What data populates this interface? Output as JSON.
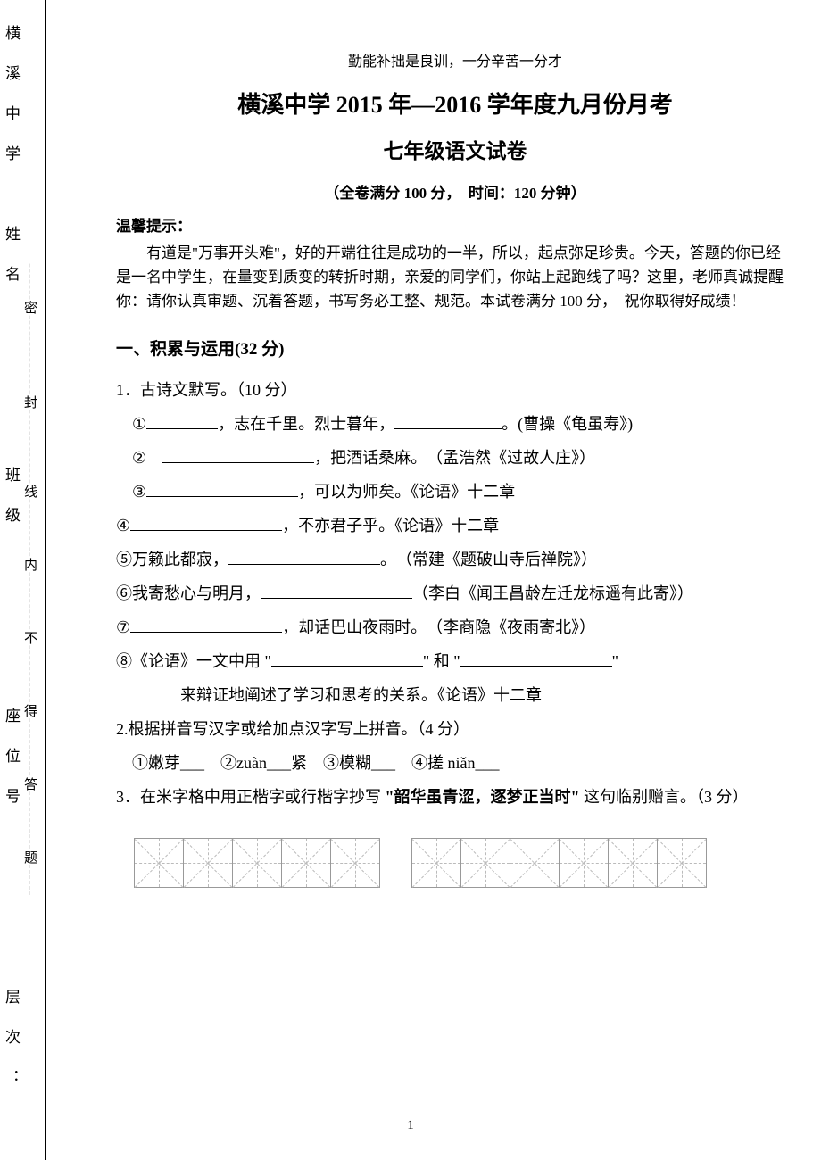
{
  "side": {
    "label1": "横溪中学　姓名　　　　班级　　　　座位号　　　　层次：　　",
    "seal": "-------密---------------封--------------线-----------内-----------不-----------得-----------答-----------题------"
  },
  "header": {
    "motto": "勤能补拙是良训，一分辛苦一分才",
    "title": "横溪中学 2015 年—2016 学年度九月份月考",
    "subtitle": "七年级语文试卷",
    "info": "（全卷满分 100 分，　时间：120 分钟）"
  },
  "tip": {
    "label": "温馨提示：",
    "para": "有道是\"万事开头难\"，好的开端往往是成功的一半，所以，起点弥足珍贵。今天，答题的你已经是一名中学生，在量变到质变的转折时期，亲爱的同学们，你站上起跑线了吗？这里，老师真诚提醒你：请你认真审题、沉着答题，书写务必工整、规范。本试卷满分 100 分，　祝你取得好成绩！"
  },
  "section": {
    "title": "一、积累与运用(32 分)"
  },
  "q1": {
    "title": "1．古诗文默写。（10 分）",
    "items": {
      "i1_a": "①",
      "i1_b": "，志在千里。烈士暮年，",
      "i1_c": "。(曹操《龟虽寿》)",
      "i2_a": "②　",
      "i2_b": "，把酒话桑麻。　（孟浩然《过故人庄》）",
      "i3_a": "③",
      "i3_b": "，可以为师矣。《论语》十二章",
      "i4_a": "④",
      "i4_b": "，不亦君子乎。《论语》十二章",
      "i5_a": "⑤万籁此都寂，",
      "i5_b": "。　（常建《题破山寺后禅院》）",
      "i6_a": "⑥我寄愁心与明月，",
      "i6_b": "（李白《闻王昌龄左迁龙标遥有此寄》）",
      "i7_a": "⑦",
      "i7_b": "，却话巴山夜雨时。　（李商隐《夜雨寄北》）",
      "i8_a": "⑧《论语》一文中用 \"",
      "i8_b": "\" 和 \"",
      "i8_c": "\"",
      "i8_d": "来辩证地阐述了学习和思考的关系。《论语》十二章"
    }
  },
  "q2": {
    "title": "2.根据拼音写汉字或给加点汉字写上拼音。（4 分）",
    "line": "①嫩芽___　②zuàn___紧　③模糊___　④搓 niǎn___"
  },
  "q3": {
    "title_a": "3．在米字格中用正楷字或行楷字抄写 ",
    "title_bold": "\"韶华虽青涩，逐梦正当时\"",
    "title_b": " 这句临别赠言。（3 分）"
  },
  "pagenum": "1"
}
